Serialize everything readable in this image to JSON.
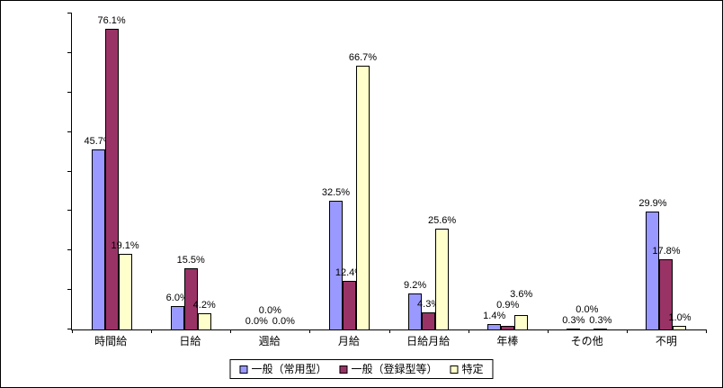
{
  "chart_data": {
    "type": "bar",
    "title": "",
    "xlabel": "",
    "ylabel": "",
    "ylim": [
      0,
      80
    ],
    "grid": false,
    "legend_position": "bottom",
    "label_format": "one_decimal_percent",
    "categories": [
      "時間給",
      "日給",
      "週給",
      "月給",
      "日給月給",
      "年棒",
      "その他",
      "不明"
    ],
    "series": [
      {
        "name": "一般（常用型）",
        "color": "#9999FF",
        "values": [
          45.7,
          6.0,
          0.0,
          32.5,
          9.2,
          1.4,
          0.3,
          29.9
        ]
      },
      {
        "name": "一般（登録型等）",
        "color": "#993366",
        "values": [
          76.1,
          15.5,
          0.0,
          12.4,
          4.3,
          0.9,
          0.0,
          17.8
        ]
      },
      {
        "name": "特定",
        "color": "#FFFFCC",
        "values": [
          19.1,
          4.2,
          0.0,
          66.7,
          25.6,
          3.6,
          0.3,
          1.0
        ]
      }
    ]
  },
  "colors": {
    "axis": "#000000",
    "text": "#000000",
    "background": "#FFFFFF"
  }
}
